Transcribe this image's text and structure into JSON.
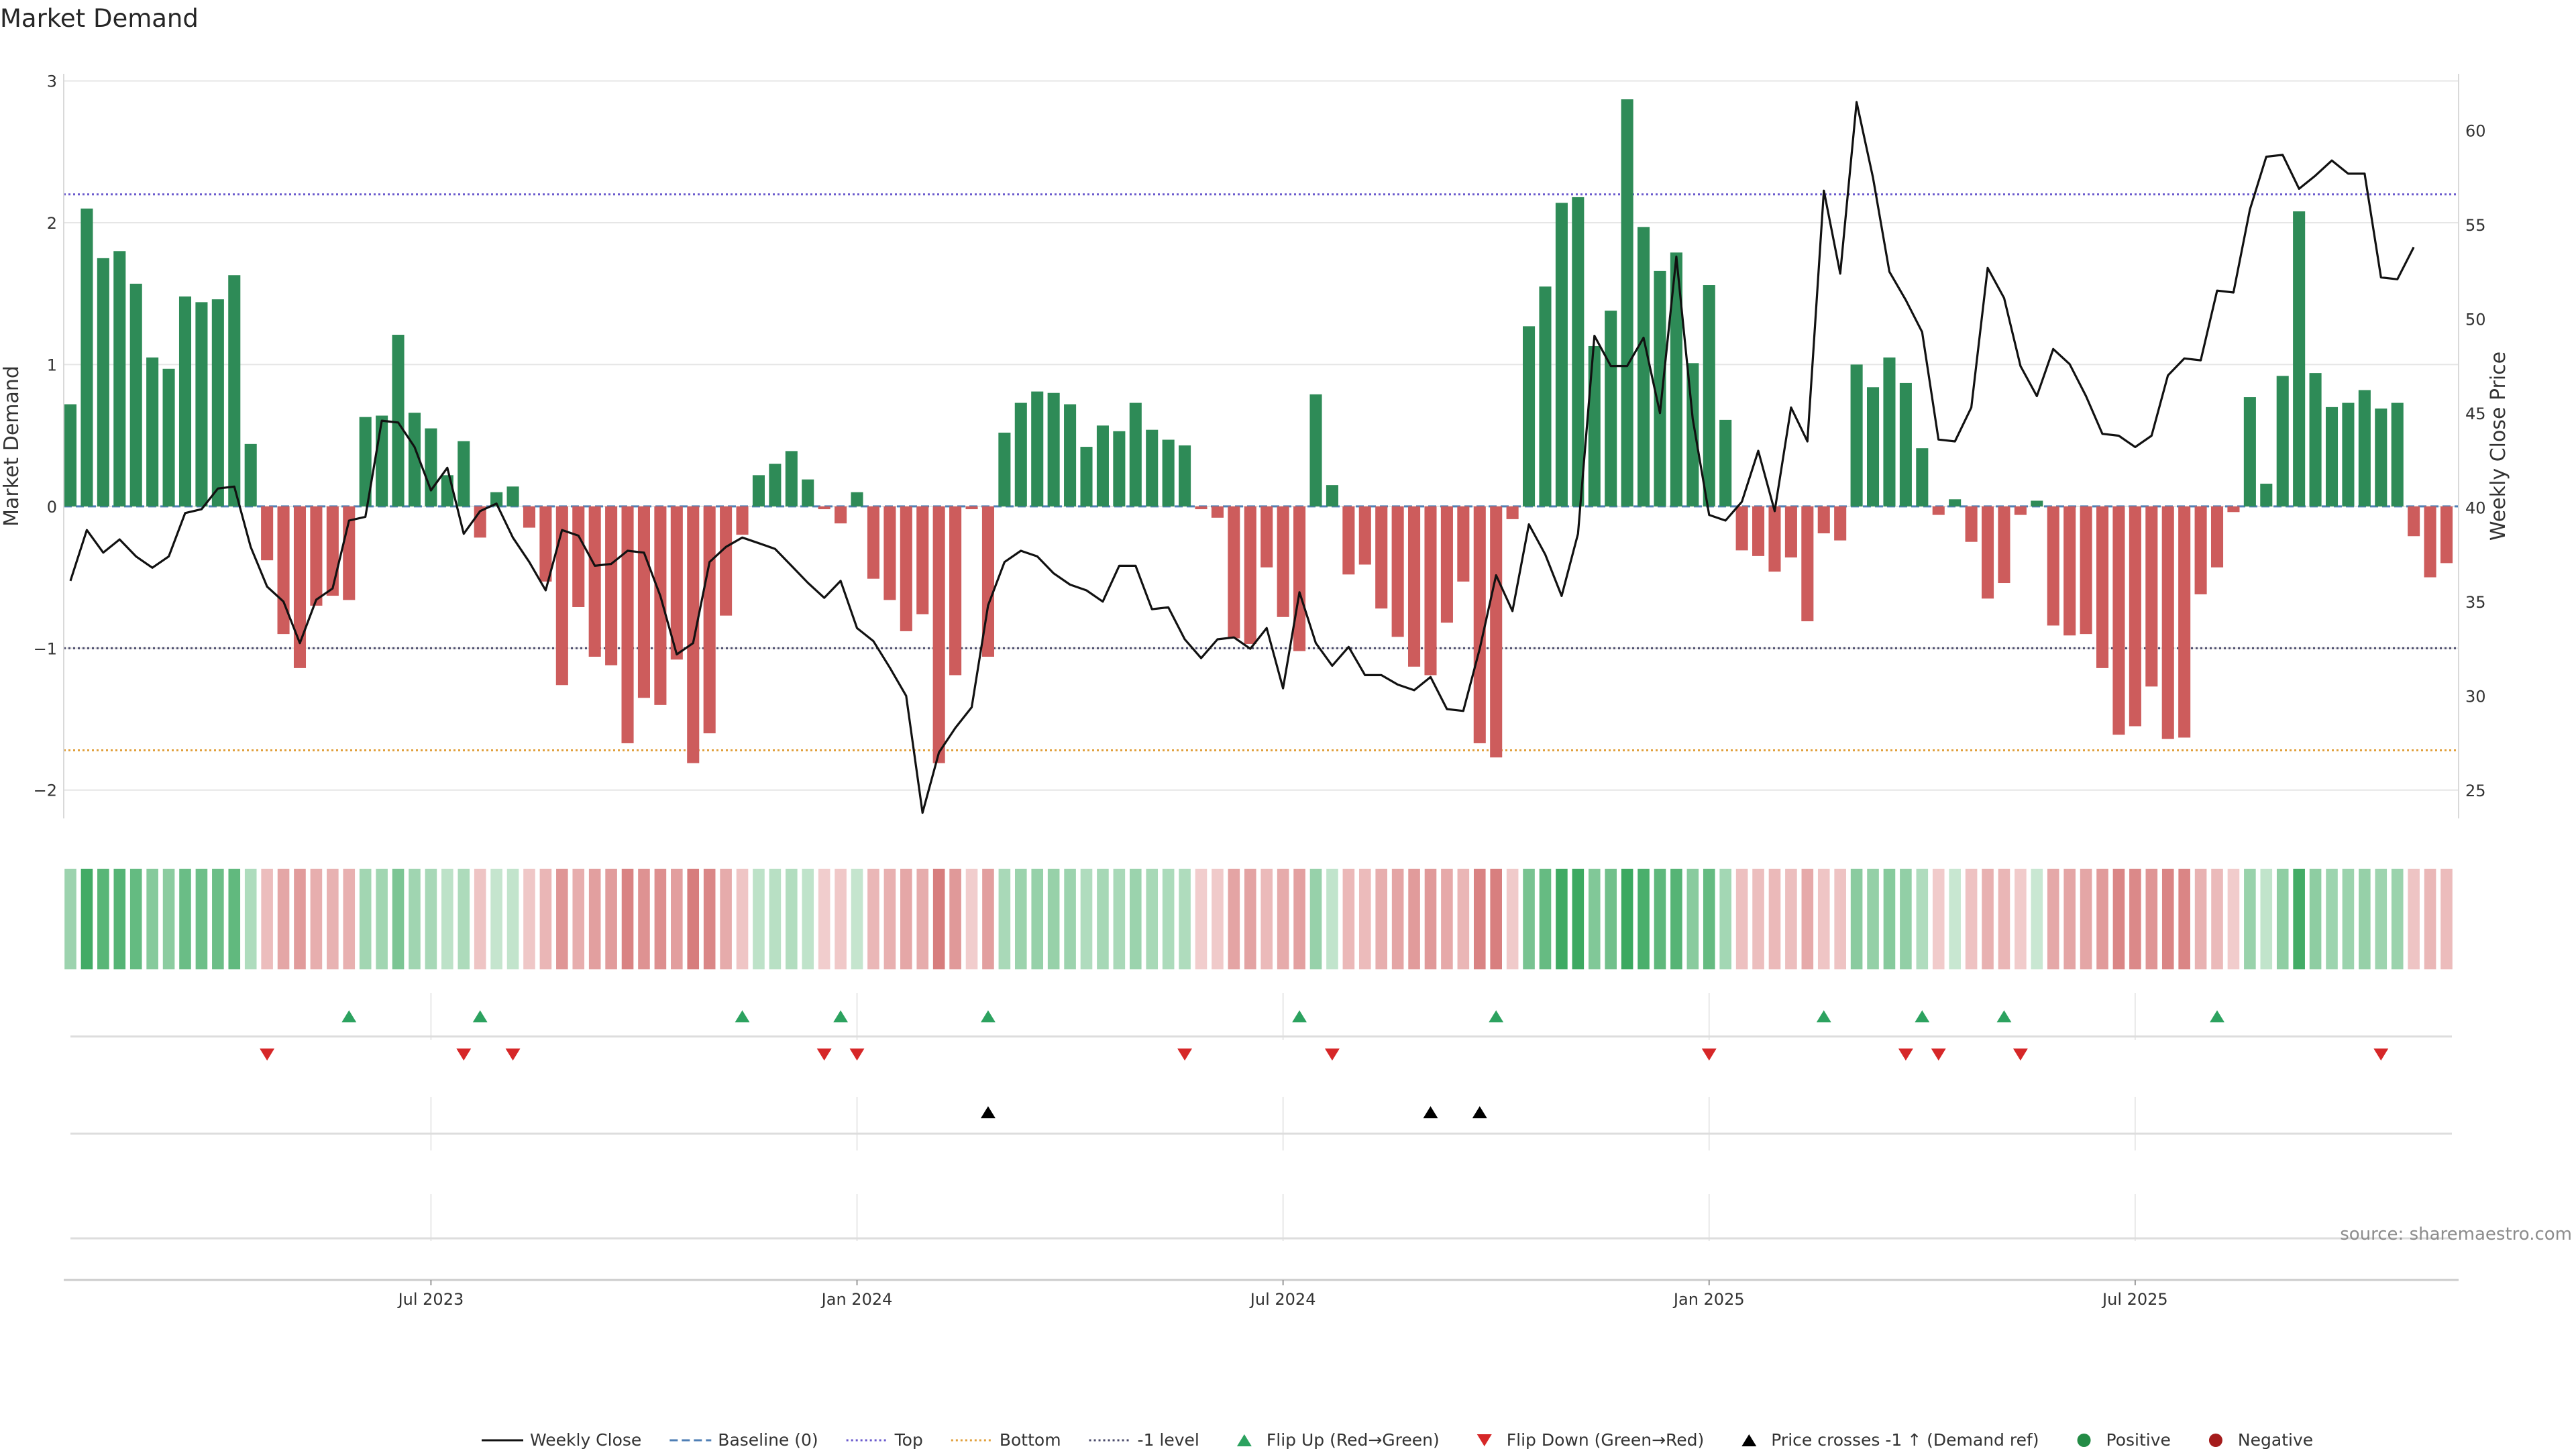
{
  "chart_data": {
    "type": "bar",
    "title": "Market Demand",
    "ylabel_left": "Market Demand",
    "ylabel_right": "Weekly Close Price",
    "ylim_left": [
      -2.2,
      3.05
    ],
    "ylim_right": [
      23.5,
      63
    ],
    "left_ticks": [
      {
        "v": 3,
        "t": "3"
      },
      {
        "v": 2,
        "t": "2"
      },
      {
        "v": 1,
        "t": "1"
      },
      {
        "v": 0,
        "t": "0"
      },
      {
        "v": -1,
        "t": "−1"
      },
      {
        "v": -2,
        "t": "−2"
      }
    ],
    "right_ticks": [
      {
        "v": 60,
        "t": "60"
      },
      {
        "v": 55,
        "t": "55"
      },
      {
        "v": 50,
        "t": "50"
      },
      {
        "v": 45,
        "t": "45"
      },
      {
        "v": 40,
        "t": "40"
      },
      {
        "v": 35,
        "t": "35"
      },
      {
        "v": 30,
        "t": "30"
      },
      {
        "v": 25,
        "t": "25"
      }
    ],
    "x_ticks": [
      {
        "i": 22,
        "t": "Jul 2023"
      },
      {
        "i": 48,
        "t": "Jan 2024"
      },
      {
        "i": 74,
        "t": "Jul 2024"
      },
      {
        "i": 100,
        "t": "Jan 2025"
      },
      {
        "i": 126,
        "t": "Jul 2025"
      }
    ],
    "reference_lines": {
      "top": 2.2,
      "bottom": -1.72,
      "minus_one": -1.0,
      "baseline": 0
    },
    "demand": [
      0.72,
      2.1,
      1.75,
      1.8,
      1.57,
      1.05,
      0.97,
      1.48,
      1.44,
      1.46,
      1.63,
      0.44,
      -0.38,
      -0.9,
      -1.14,
      -0.7,
      -0.63,
      -0.66,
      0.63,
      0.64,
      1.21,
      0.66,
      0.55,
      0.22,
      0.46,
      -0.22,
      0.1,
      0.14,
      -0.15,
      -0.53,
      -1.26,
      -0.71,
      -1.06,
      -1.12,
      -1.67,
      -1.35,
      -1.4,
      -1.08,
      -1.81,
      -1.6,
      -0.77,
      -0.2,
      0.22,
      0.3,
      0.39,
      0.19,
      -0.02,
      -0.12,
      0.1,
      -0.51,
      -0.66,
      -0.88,
      -0.76,
      -1.81,
      -1.19,
      -0.02,
      -1.06,
      0.52,
      0.73,
      0.81,
      0.8,
      0.72,
      0.42,
      0.57,
      0.53,
      0.73,
      0.54,
      0.47,
      0.43,
      -0.02,
      -0.08,
      -0.93,
      -0.97,
      -0.43,
      -0.78,
      -1.02,
      0.79,
      0.15,
      -0.48,
      -0.41,
      -0.72,
      -0.92,
      -1.13,
      -1.19,
      -0.82,
      -0.53,
      -1.67,
      -1.77,
      -0.09,
      1.27,
      1.55,
      2.14,
      2.18,
      1.13,
      1.38,
      2.87,
      1.97,
      1.66,
      1.79,
      1.01,
      1.56,
      0.61,
      -0.31,
      -0.35,
      -0.46,
      -0.36,
      -0.81,
      -0.19,
      -0.24,
      1.0,
      0.84,
      1.05,
      0.87,
      0.41,
      -0.06,
      0.05,
      -0.25,
      -0.65,
      -0.54,
      -0.06,
      0.04,
      -0.84,
      -0.91,
      -0.9,
      -1.14,
      -1.61,
      -1.55,
      -1.27,
      -1.64,
      -1.63,
      -0.62,
      -0.43,
      -0.04,
      0.77,
      0.16,
      0.92,
      2.08,
      0.94,
      0.7,
      0.73,
      0.82,
      0.69,
      0.73,
      -0.21,
      -0.5,
      -0.4
    ],
    "close": [
      36.1,
      38.8,
      37.6,
      38.3,
      37.4,
      36.8,
      37.4,
      39.7,
      39.9,
      41.0,
      41.1,
      37.9,
      35.8,
      35.0,
      32.8,
      35.1,
      35.7,
      39.3,
      39.5,
      44.6,
      44.5,
      43.2,
      40.9,
      42.1,
      38.6,
      39.8,
      40.2,
      38.4,
      37.1,
      35.6,
      38.8,
      38.5,
      36.9,
      37.0,
      37.7,
      37.6,
      35.3,
      32.2,
      32.8,
      37.1,
      37.9,
      38.4,
      38.1,
      37.8,
      36.9,
      36.0,
      35.2,
      36.1,
      33.6,
      32.9,
      31.5,
      30.0,
      23.8,
      27.0,
      28.3,
      29.4,
      34.8,
      37.1,
      37.7,
      37.4,
      36.5,
      35.9,
      35.6,
      35.0,
      36.9,
      36.9,
      34.6,
      34.7,
      33.0,
      32.0,
      33.0,
      33.1,
      32.5,
      33.6,
      30.4,
      35.5,
      32.8,
      31.6,
      32.6,
      31.1,
      31.1,
      30.6,
      30.3,
      31.0,
      29.3,
      29.2,
      32.5,
      36.4,
      34.5,
      39.1,
      37.5,
      35.3,
      38.6,
      49.1,
      47.5,
      47.5,
      49.0,
      45.0,
      53.3,
      44.7,
      39.6,
      39.3,
      40.3,
      43.0,
      39.8,
      45.3,
      43.5,
      56.8,
      52.4,
      61.5,
      57.5,
      52.5,
      51.0,
      49.3,
      43.6,
      43.5,
      45.3,
      52.7,
      51.1,
      47.5,
      45.9,
      48.4,
      47.6,
      45.9,
      43.9,
      43.8,
      43.2,
      43.8,
      47.0,
      47.9,
      47.8,
      51.5,
      51.4,
      55.8,
      58.6,
      58.7,
      56.9,
      57.6,
      58.4,
      57.7,
      57.7,
      52.2,
      52.1,
      53.8
    ],
    "flip_up_idx": [
      17,
      25,
      41,
      47,
      56,
      75,
      87,
      107,
      113,
      118,
      131
    ],
    "flip_down_idx": [
      12,
      24,
      27,
      46,
      48,
      68,
      77,
      100,
      112,
      114,
      119,
      141
    ],
    "price_cross_idx": [
      56,
      83,
      86
    ],
    "legend": [
      {
        "type": "line",
        "label": "Weekly Close",
        "color": "#111111",
        "dash": ""
      },
      {
        "type": "line",
        "label": "Baseline (0)",
        "color": "#4f7fb5",
        "dash": "12 6"
      },
      {
        "type": "line",
        "label": "Top",
        "color": "#6a5acd",
        "dash": "3 4"
      },
      {
        "type": "line",
        "label": "Bottom",
        "color": "#e1a03c",
        "dash": "3 4"
      },
      {
        "type": "line",
        "label": "-1 level",
        "color": "#4a4a6a",
        "dash": "3 4"
      },
      {
        "type": "tri-up",
        "label": "Flip Up (Red→Green)",
        "color": "#2ca25f"
      },
      {
        "type": "tri-down",
        "label": "Flip Down (Green→Red)",
        "color": "#d62728"
      },
      {
        "type": "tri-up",
        "label": "Price crosses -1 ↑ (Demand ref)",
        "color": "#000000"
      },
      {
        "type": "dot",
        "label": "Positive",
        "color": "#238b45"
      },
      {
        "type": "dot",
        "label": "Negative",
        "color": "#a51c1c"
      }
    ],
    "source": "source: sharemaestro.com",
    "colors": {
      "positive": "#2e8b57",
      "negative": "#cd5c5c",
      "close": "#111111",
      "grid": "#e6e6e6"
    }
  }
}
